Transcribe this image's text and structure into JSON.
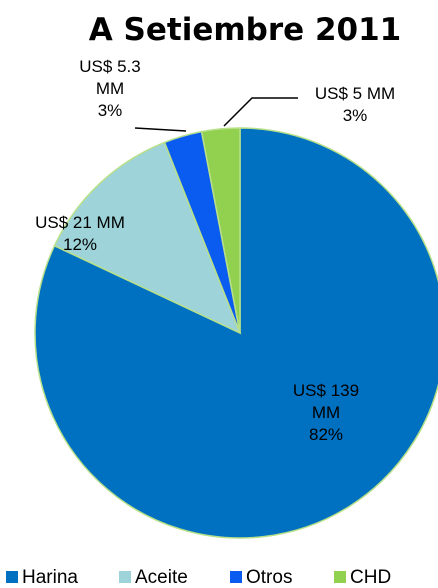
{
  "chart_data": {
    "type": "pie",
    "title": "A Setiembre 2011",
    "categories": [
      "Harina",
      "Aceite",
      "Otros",
      "CHD"
    ],
    "values": [
      82,
      12,
      3,
      3
    ],
    "value_labels": [
      "82%",
      "12%",
      "3%",
      "3%"
    ],
    "amounts": [
      139,
      21,
      5.3,
      5
    ],
    "amount_labels": [
      "US$ 139 MM",
      "US$  21 MM",
      "US$ 5.3 MM",
      "US$ 5 MM"
    ],
    "colors": [
      "#0070c0",
      "#9dd3d9",
      "#0a5cf0",
      "#92d050"
    ]
  }
}
